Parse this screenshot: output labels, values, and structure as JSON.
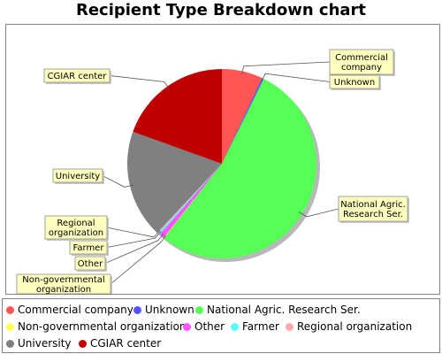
{
  "chart_data": {
    "type": "pie",
    "title": "Recipient Type Breakdown chart",
    "slices": [
      {
        "name": "Commercial company",
        "label": [
          "Commercial",
          "company"
        ],
        "value": 7,
        "color": "#ff5555"
      },
      {
        "name": "Unknown",
        "label": [
          "Unknown"
        ],
        "value": 0.3,
        "color": "#5555ff"
      },
      {
        "name": "National Agric. Research Ser.",
        "label": [
          "National Agric.",
          "Research Ser."
        ],
        "value": 53.2,
        "color": "#55ff55"
      },
      {
        "name": "Non-governmental organization",
        "label": [
          "Non-governmental",
          "organization"
        ],
        "value": 0.1,
        "color": "#ffff55"
      },
      {
        "name": "Other",
        "label": [
          "Other"
        ],
        "value": 0.9,
        "color": "#ff55ff"
      },
      {
        "name": "Farmer",
        "label": [
          "Farmer"
        ],
        "value": 0.3,
        "color": "#55ffff"
      },
      {
        "name": "Regional organization",
        "label": [
          "Regional",
          "organization"
        ],
        "value": 0.2,
        "color": "#ffaaaa"
      },
      {
        "name": "University",
        "label": [
          "University"
        ],
        "value": 18.5,
        "color": "#808080"
      },
      {
        "name": "CGIAR center",
        "label": [
          "CGIAR center"
        ],
        "value": 19.5,
        "color": "#c00000"
      }
    ],
    "legend_placement": "bottom"
  }
}
